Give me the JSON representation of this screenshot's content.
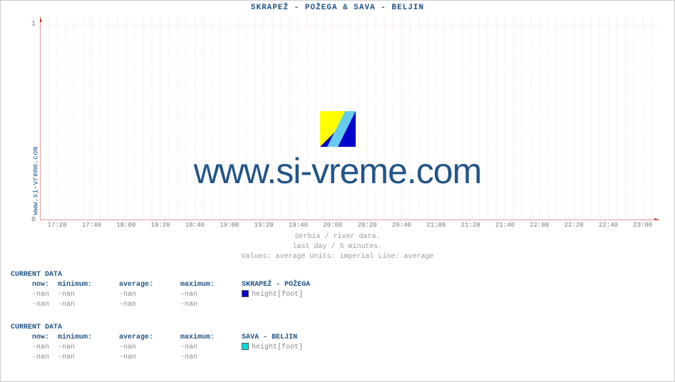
{
  "title": "SKRAPEŽ -  POŽEGA &  SAVA -  BELJIN",
  "ylabel": "www.si-vreme.com",
  "watermark": "www.si-vreme.com",
  "subtitle1": "Serbia / river data.",
  "subtitle2": "last day / 5 minutes.",
  "subtitle3": "Values: average  Units: imperial  Line: average",
  "chart": {
    "type": "line",
    "background_color": "#ffffff",
    "grid_color_minor": "#f4d0d0",
    "grid_color_major": "#f4d0d0",
    "axis_color": "#cc3333",
    "xlim_labels": [
      "17:20",
      "17:40",
      "18:00",
      "18:20",
      "18:40",
      "19:00",
      "19:20",
      "19:40",
      "20:00",
      "20:20",
      "20:40",
      "21:00",
      "21:20",
      "21:40",
      "22:00",
      "22:20",
      "22:40",
      "23:00"
    ],
    "ylim": [
      0,
      1.05
    ],
    "yticks": [
      0,
      1
    ],
    "series": [],
    "label_fontsize": 9,
    "tick_color": "#777777"
  },
  "logo_colors": {
    "a": "#ffff00",
    "b": "#66ccee",
    "c": "#0000cc"
  },
  "blocks": [
    {
      "header": "CURRENT DATA",
      "station": "SKRAPEŽ -  POŽEGA",
      "swatch": "#0000cc",
      "param": "height[foot]",
      "cols": [
        "now:",
        "minimum:",
        "average:",
        "maximum:"
      ],
      "rows": [
        [
          "-nan",
          "-nan",
          "-nan",
          "-nan"
        ],
        [
          "-nan",
          "-nan",
          "-nan",
          "-nan"
        ]
      ]
    },
    {
      "header": "CURRENT DATA",
      "station": "SAVA -  BELJIN",
      "swatch": "#00dddd",
      "param": "height[foot]",
      "cols": [
        "now:",
        "minimum:",
        "average:",
        "maximum:"
      ],
      "rows": [
        [
          "-nan",
          "-nan",
          "-nan",
          "-nan"
        ],
        [
          "-nan",
          "-nan",
          "-nan",
          "-nan"
        ]
      ]
    }
  ]
}
